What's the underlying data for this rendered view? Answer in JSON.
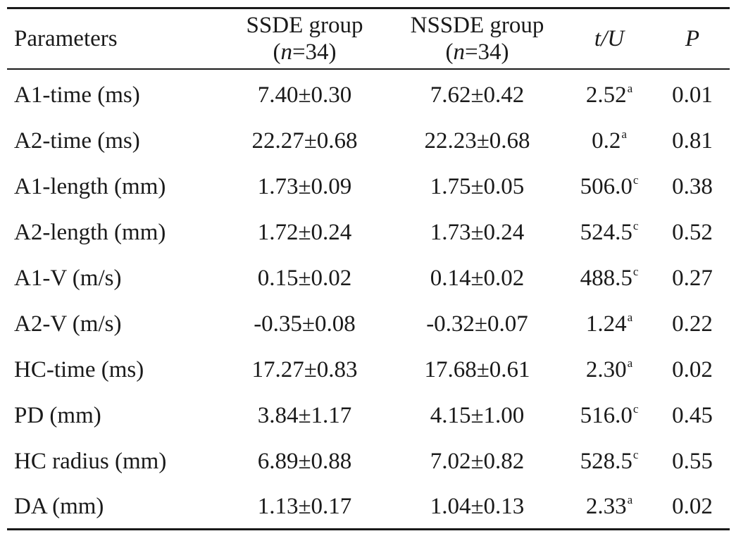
{
  "table": {
    "headers": {
      "parameters": "Parameters",
      "ssde_line1": "SSDE group",
      "ssde_n_open": "(",
      "ssde_n_var": "n",
      "ssde_n_rest": "=34)",
      "nssde_line1": "NSSDE group",
      "nssde_n_open": "(",
      "nssde_n_var": "n",
      "nssde_n_rest": "=34)",
      "tu": "t/U",
      "p": "P"
    },
    "rows": [
      {
        "param": "A1-time (ms)",
        "ssde": "7.40±0.30",
        "nssde": "7.62±0.42",
        "tu": "2.52",
        "tu_sup": "a",
        "p": "0.01"
      },
      {
        "param": "A2-time (ms)",
        "ssde": "22.27±0.68",
        "nssde": "22.23±0.68",
        "tu": "0.2",
        "tu_sup": "a",
        "p": "0.81"
      },
      {
        "param": "A1-length (mm)",
        "ssde": "1.73±0.09",
        "nssde": "1.75±0.05",
        "tu": "506.0",
        "tu_sup": "c",
        "p": "0.38"
      },
      {
        "param": "A2-length (mm)",
        "ssde": "1.72±0.24",
        "nssde": "1.73±0.24",
        "tu": "524.5",
        "tu_sup": "c",
        "p": "0.52"
      },
      {
        "param": "A1-V (m/s)",
        "ssde": "0.15±0.02",
        "nssde": "0.14±0.02",
        "tu": "488.5",
        "tu_sup": "c",
        "p": "0.27"
      },
      {
        "param": "A2-V (m/s)",
        "ssde": "-0.35±0.08",
        "nssde": "-0.32±0.07",
        "tu": "1.24",
        "tu_sup": "a",
        "p": "0.22"
      },
      {
        "param": "HC-time (ms)",
        "ssde": "17.27±0.83",
        "nssde": "17.68±0.61",
        "tu": "2.30",
        "tu_sup": "a",
        "p": "0.02"
      },
      {
        "param": "PD (mm)",
        "ssde": "3.84±1.17",
        "nssde": "4.15±1.00",
        "tu": "516.0",
        "tu_sup": "c",
        "p": "0.45"
      },
      {
        "param": "HC radius (mm)",
        "ssde": "6.89±0.88",
        "nssde": "7.02±0.82",
        "tu": "528.5",
        "tu_sup": "c",
        "p": "0.55"
      },
      {
        "param": "DA (mm)",
        "ssde": "1.13±0.17",
        "nssde": "1.04±0.13",
        "tu": "2.33",
        "tu_sup": "a",
        "p": "0.02"
      }
    ]
  }
}
